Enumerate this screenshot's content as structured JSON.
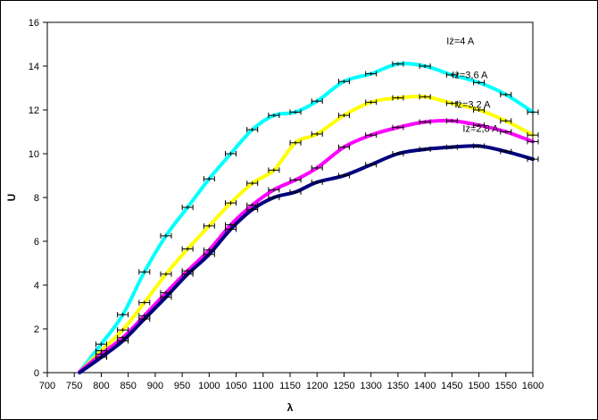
{
  "chart_data": {
    "type": "line",
    "xlabel": "λ",
    "ylabel": "U",
    "xlim": [
      700,
      1600
    ],
    "ylim": [
      0,
      16
    ],
    "x_ticks": [
      700,
      750,
      800,
      850,
      900,
      950,
      1000,
      1050,
      1100,
      1150,
      1200,
      1250,
      1300,
      1350,
      1400,
      1450,
      1500,
      1550,
      1600
    ],
    "y_ticks": [
      0,
      2,
      4,
      6,
      8,
      10,
      12,
      14,
      16
    ],
    "grid": false,
    "error_bars": true,
    "series": [
      {
        "name": "Iż=4 A",
        "color": "#00ffff",
        "x": [
          760,
          800,
          840,
          880,
          920,
          960,
          1000,
          1040,
          1080,
          1120,
          1160,
          1200,
          1250,
          1300,
          1350,
          1400,
          1450,
          1500,
          1550,
          1600
        ],
        "y": [
          0.05,
          1.3,
          2.65,
          4.6,
          6.25,
          7.55,
          8.85,
          10.0,
          11.1,
          11.75,
          11.9,
          12.4,
          13.3,
          13.65,
          14.1,
          14.0,
          13.6,
          13.25,
          12.7,
          11.9
        ]
      },
      {
        "name": "Iż=3,6 A",
        "color": "#ffff00",
        "x": [
          760,
          800,
          840,
          880,
          920,
          960,
          1000,
          1040,
          1080,
          1120,
          1160,
          1200,
          1250,
          1300,
          1350,
          1400,
          1450,
          1500,
          1550,
          1600
        ],
        "y": [
          0.05,
          1.0,
          1.95,
          3.2,
          4.5,
          5.65,
          6.7,
          7.75,
          8.65,
          9.25,
          10.5,
          10.9,
          11.75,
          12.35,
          12.55,
          12.6,
          12.3,
          12.0,
          11.5,
          10.85
        ]
      },
      {
        "name": "Iż=3,2 A",
        "color": "#ff00ff",
        "x": [
          760,
          800,
          840,
          880,
          920,
          960,
          1000,
          1040,
          1080,
          1120,
          1160,
          1200,
          1250,
          1300,
          1350,
          1400,
          1450,
          1500,
          1550,
          1600
        ],
        "y": [
          0.05,
          0.85,
          1.6,
          2.6,
          3.65,
          4.65,
          5.6,
          6.75,
          7.65,
          8.35,
          8.8,
          9.35,
          10.3,
          10.85,
          11.2,
          11.45,
          11.5,
          11.3,
          11.0,
          10.55
        ]
      },
      {
        "name": "Iż=2,8 A",
        "color": "#000080",
        "x": [
          760,
          800,
          840,
          880,
          920,
          960,
          1000,
          1040,
          1080,
          1120,
          1160,
          1200,
          1250,
          1300,
          1350,
          1400,
          1450,
          1500,
          1550,
          1600
        ],
        "y": [
          0.0,
          0.7,
          1.45,
          2.45,
          3.45,
          4.5,
          5.4,
          6.55,
          7.45,
          8.0,
          8.25,
          8.7,
          9.0,
          9.5,
          10.0,
          10.2,
          10.3,
          10.35,
          10.1,
          9.75
        ]
      }
    ],
    "annotations": [
      {
        "text": "Iż=4 A",
        "x": 1440,
        "y": 15.0
      },
      {
        "text": "Iż=3,6 A",
        "x": 1450,
        "y": 13.45
      },
      {
        "text": "Iż=3,2 A",
        "x": 1455,
        "y": 12.1
      },
      {
        "text": "Iż=2,8 A",
        "x": 1470,
        "y": 11.0
      }
    ]
  }
}
